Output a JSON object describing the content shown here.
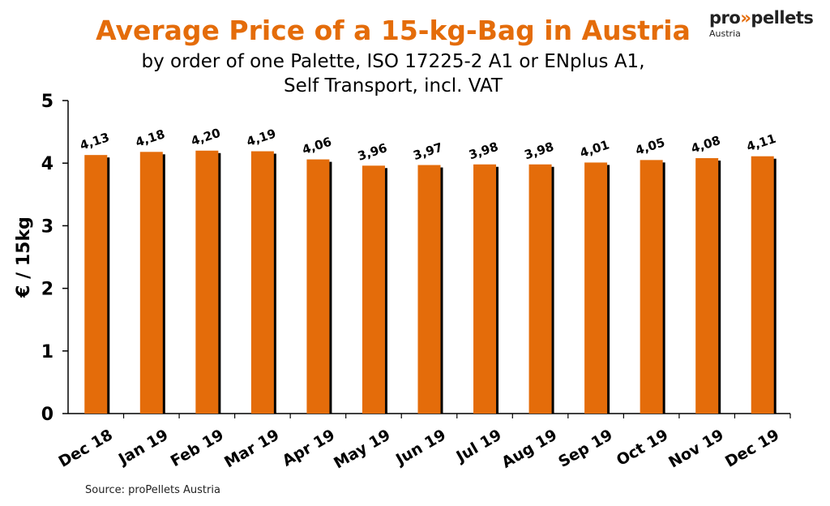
{
  "title": "Average Price of a 15-kg-Bag in Austria",
  "subtitle_line1": "by order of one Palette, ISO 17225-2 A1 or ENplus A1,",
  "subtitle_line2": "Self Transport, incl. VAT",
  "logo": {
    "pre": "pro",
    "chevrons": "»",
    "post": "pellets",
    "sub": "Austria"
  },
  "source": "Source: proPellets Austria",
  "colors": {
    "bar": "#e46c0a",
    "shadow": "#000000",
    "title": "#e46c0a"
  },
  "chart_data": {
    "type": "bar",
    "categories": [
      "Dec 18",
      "Jan 19",
      "Feb 19",
      "Mar 19",
      "Apr 19",
      "May 19",
      "Jun 19",
      "Jul 19",
      "Aug 19",
      "Sep 19",
      "Oct 19",
      "Nov 19",
      "Dec 19"
    ],
    "values": [
      4.13,
      4.18,
      4.2,
      4.19,
      4.06,
      3.96,
      3.97,
      3.98,
      3.98,
      4.01,
      4.05,
      4.08,
      4.11
    ],
    "data_labels": [
      "4,13",
      "4,18",
      "4,20",
      "4,19",
      "4,06",
      "3,96",
      "3,97",
      "3,98",
      "3,98",
      "4,01",
      "4,05",
      "4,08",
      "4,11"
    ],
    "ylabel": "€ / 15kg",
    "xlabel": "",
    "ylim": [
      0,
      5
    ],
    "yticks": [
      0,
      1,
      2,
      3,
      4,
      5
    ],
    "grid": false,
    "legend": "none"
  }
}
